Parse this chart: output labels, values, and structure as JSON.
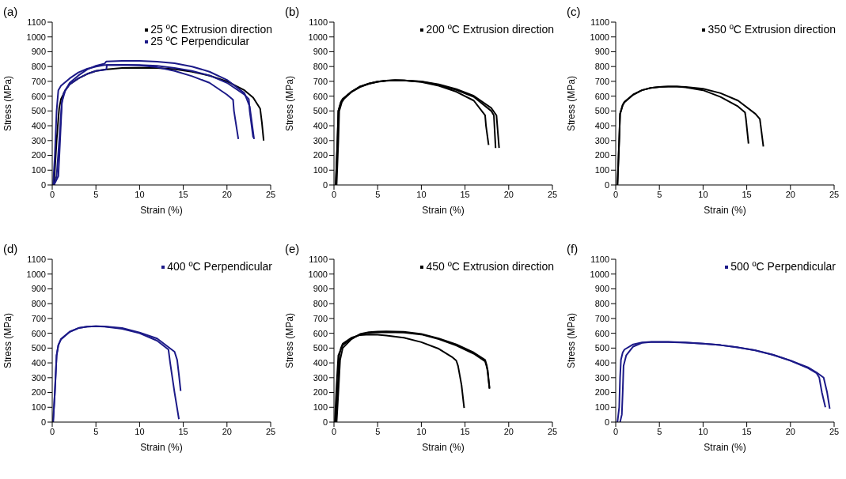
{
  "chart_data": [
    {
      "type": "line",
      "title": "(a)",
      "xlabel": "Strain (%)",
      "ylabel": "Stress (MPa)",
      "xlim": [
        0,
        25
      ],
      "xticks": [
        0,
        5,
        10,
        15,
        20,
        25
      ],
      "ylim": [
        0,
        1100
      ],
      "yticks": [
        0,
        100,
        200,
        300,
        400,
        500,
        600,
        700,
        800,
        900,
        1000,
        1100
      ],
      "legend": "top right",
      "marker": "none",
      "series": [
        {
          "name": "25 ºC Extrusion direction",
          "color": "#000000",
          "x": [
            0.2,
            0.5,
            0.8,
            1,
            1.5,
            2,
            3,
            4,
            5,
            6,
            8,
            10,
            12,
            14,
            16,
            18,
            20,
            22,
            23,
            23.8,
            24,
            24.2
          ],
          "values": [
            0,
            300,
            520,
            580,
            640,
            680,
            720,
            750,
            770,
            780,
            790,
            792,
            790,
            782,
            765,
            738,
            700,
            640,
            590,
            515,
            420,
            300
          ]
        },
        {
          "name": "25 ºC Perpendicular",
          "color": "#1c1a88",
          "x": [
            0.1,
            0.3,
            0.5,
            0.7,
            1,
            2,
            3,
            4,
            5,
            6,
            8,
            10,
            12,
            14,
            16,
            18,
            20,
            20.7,
            20.8,
            21.3
          ],
          "values": [
            0,
            200,
            500,
            640,
            670,
            720,
            760,
            785,
            800,
            810,
            812,
            808,
            795,
            770,
            735,
            690,
            610,
            575,
            500,
            310
          ]
        },
        {
          "color": "#1c1a88",
          "x": [
            0.2,
            0.7,
            0.9,
            1.1,
            1.3,
            2,
            3,
            4,
            5,
            6,
            6.2,
            8,
            10,
            12,
            14,
            16,
            18,
            20,
            22,
            22.6,
            23.1
          ],
          "values": [
            0,
            60,
            300,
            550,
            620,
            690,
            740,
            780,
            805,
            820,
            835,
            838,
            838,
            833,
            822,
            800,
            765,
            710,
            620,
            530,
            310
          ]
        },
        {
          "color": "#1c1a88",
          "x": [
            0.2,
            0.5,
            0.8,
            1.1,
            1.5,
            2,
            3,
            4,
            5,
            6.2,
            6.25,
            8,
            10,
            12,
            14,
            16,
            18,
            20,
            22,
            22.5,
            22.6,
            23
          ],
          "values": [
            0,
            60,
            300,
            560,
            640,
            680,
            720,
            750,
            770,
            780,
            810,
            812,
            810,
            805,
            790,
            770,
            740,
            690,
            610,
            580,
            500,
            320
          ]
        }
      ]
    },
    {
      "type": "line",
      "title": "(b)",
      "xlabel": "Strain (%)",
      "ylabel": "Stress (MPa)",
      "xlim": [
        0,
        25
      ],
      "xticks": [
        0,
        5,
        10,
        15,
        20,
        25
      ],
      "ylim": [
        0,
        1100
      ],
      "yticks": [
        0,
        100,
        200,
        300,
        400,
        500,
        600,
        700,
        800,
        900,
        1000,
        1100
      ],
      "legend": "top right",
      "marker": "none",
      "series": [
        {
          "name": "200 ºC Extrusion direction",
          "color": "#000000",
          "x": [
            0.2,
            0.4,
            0.5,
            0.8,
            1,
            2,
            3,
            4,
            5,
            6,
            7,
            8,
            10,
            12,
            14,
            16,
            17.3,
            17.4,
            17.7
          ],
          "values": [
            0,
            300,
            500,
            560,
            580,
            630,
            665,
            685,
            698,
            705,
            708,
            706,
            695,
            670,
            630,
            570,
            470,
            400,
            270
          ]
        },
        {
          "color": "#000000",
          "x": [
            0.2,
            0.4,
            0.5,
            0.8,
            1,
            2,
            3,
            4,
            5,
            6,
            7,
            8,
            10,
            12,
            14,
            16,
            18,
            18.3,
            18.5
          ],
          "values": [
            0,
            300,
            500,
            560,
            580,
            630,
            665,
            685,
            698,
            705,
            708,
            706,
            698,
            675,
            642,
            595,
            500,
            470,
            250
          ]
        },
        {
          "color": "#000000",
          "x": [
            0.3,
            0.5,
            0.6,
            0.9,
            1.2,
            2,
            3,
            4,
            5,
            6,
            7,
            8,
            10,
            12,
            14,
            16,
            18,
            18.6,
            18.9
          ],
          "values": [
            0,
            300,
            500,
            560,
            585,
            628,
            662,
            683,
            697,
            704,
            707,
            706,
            700,
            680,
            648,
            602,
            520,
            470,
            250
          ]
        }
      ]
    },
    {
      "type": "line",
      "title": "(c)",
      "xlabel": "Strain (%)",
      "ylabel": "Stress (MPa)",
      "xlim": [
        0,
        25
      ],
      "xticks": [
        0,
        5,
        10,
        15,
        20,
        25
      ],
      "ylim": [
        0,
        1100
      ],
      "yticks": [
        0,
        100,
        200,
        300,
        400,
        500,
        600,
        700,
        800,
        900,
        1000,
        1100
      ],
      "legend": "top right",
      "marker": "none",
      "series": [
        {
          "name": "350 ºC Extrusion direction",
          "color": "#000000",
          "x": [
            0.2,
            0.4,
            0.5,
            0.8,
            1,
            2,
            3,
            4,
            5,
            6,
            7,
            8,
            10,
            12,
            14,
            14.8,
            14.9,
            15.2
          ],
          "values": [
            0,
            300,
            480,
            540,
            560,
            610,
            640,
            655,
            662,
            665,
            665,
            660,
            640,
            595,
            530,
            490,
            450,
            280
          ]
        },
        {
          "color": "#000000",
          "x": [
            0.2,
            0.4,
            0.5,
            0.8,
            1,
            2,
            3,
            4,
            5,
            6,
            7,
            8,
            10,
            12,
            14,
            16,
            16.5,
            16.6,
            16.9
          ],
          "values": [
            0,
            300,
            480,
            540,
            560,
            610,
            640,
            655,
            662,
            665,
            665,
            662,
            650,
            620,
            570,
            480,
            445,
            400,
            260
          ]
        }
      ]
    },
    {
      "type": "line",
      "title": "(d)",
      "xlabel": "Strain (%)",
      "ylabel": "Stress (MPa)",
      "xlim": [
        0,
        25
      ],
      "xticks": [
        0,
        5,
        10,
        15,
        20,
        25
      ],
      "ylim": [
        0,
        1100
      ],
      "yticks": [
        0,
        100,
        200,
        300,
        400,
        500,
        600,
        700,
        800,
        900,
        1000,
        1100
      ],
      "legend": "top right",
      "marker": "none",
      "series": [
        {
          "name": "400 ºC Perpendicular",
          "color": "#1c1a88",
          "x": [
            0.1,
            0.3,
            0.5,
            0.7,
            1,
            2,
            3,
            4,
            5,
            6,
            8,
            10,
            12,
            13.3,
            13.5,
            14,
            14.5
          ],
          "values": [
            0,
            200,
            450,
            520,
            560,
            610,
            635,
            645,
            648,
            645,
            630,
            600,
            550,
            490,
            400,
            200,
            20
          ]
        },
        {
          "color": "#1c1a88",
          "x": [
            0.1,
            0.3,
            0.5,
            0.7,
            1,
            2,
            3,
            4,
            5,
            6,
            8,
            10,
            12,
            14,
            14.3,
            14.5,
            14.7
          ],
          "values": [
            0,
            200,
            450,
            520,
            560,
            610,
            635,
            645,
            648,
            646,
            635,
            605,
            565,
            475,
            420,
            320,
            210
          ]
        }
      ]
    },
    {
      "type": "line",
      "title": "(e)",
      "xlabel": "Strain (%)",
      "ylabel": "Stress (MPa)",
      "xlim": [
        0,
        25
      ],
      "xticks": [
        0,
        5,
        10,
        15,
        20,
        25
      ],
      "ylim": [
        0,
        1100
      ],
      "yticks": [
        0,
        100,
        200,
        300,
        400,
        500,
        600,
        700,
        800,
        900,
        1000,
        1100
      ],
      "legend": "top right",
      "marker": "none",
      "series": [
        {
          "name": "450 ºC Extrusion direction",
          "color": "#000000",
          "x": [
            0.2,
            0.4,
            0.6,
            0.8,
            1,
            2,
            3,
            4,
            5,
            6,
            8,
            10,
            12,
            13.5,
            14,
            14.2,
            14.6,
            14.9
          ],
          "values": [
            0,
            200,
            450,
            500,
            530,
            570,
            588,
            592,
            590,
            585,
            570,
            540,
            495,
            440,
            415,
            380,
            250,
            95
          ]
        },
        {
          "color": "#000000",
          "x": [
            0.3,
            0.5,
            0.7,
            1,
            2,
            3,
            4,
            5,
            6,
            8,
            10,
            12,
            14,
            16,
            17.3,
            17.5,
            17.8
          ],
          "values": [
            0,
            200,
            420,
            500,
            560,
            595,
            608,
            612,
            613,
            610,
            595,
            565,
            525,
            470,
            420,
            380,
            230
          ]
        },
        {
          "color": "#000000",
          "x": [
            0.1,
            0.3,
            0.5,
            1,
            2,
            3,
            4,
            6,
            8,
            10,
            12,
            14,
            16,
            17.3,
            17.6,
            17.8
          ],
          "values": [
            0,
            250,
            450,
            520,
            565,
            592,
            603,
            608,
            605,
            592,
            560,
            518,
            462,
            410,
            350,
            225
          ]
        }
      ]
    },
    {
      "type": "line",
      "title": "(f)",
      "xlabel": "Strain (%)",
      "ylabel": "Stress (MPa)",
      "xlim": [
        0,
        25
      ],
      "xticks": [
        0,
        5,
        10,
        15,
        20,
        25
      ],
      "ylim": [
        0,
        1100
      ],
      "yticks": [
        0,
        100,
        200,
        300,
        400,
        500,
        600,
        700,
        800,
        900,
        1000,
        1100
      ],
      "legend": "top right",
      "marker": "none",
      "series": [
        {
          "name": "500 ºC Perpendicular",
          "color": "#1c1a88",
          "x": [
            0.2,
            0.4,
            0.5,
            0.6,
            0.8,
            1,
            2,
            3,
            4,
            6,
            8,
            10,
            12,
            14,
            16,
            18,
            20,
            22,
            23,
            23.3,
            23.6,
            24
          ],
          "values": [
            0,
            100,
            300,
            420,
            470,
            490,
            525,
            538,
            542,
            542,
            538,
            530,
            520,
            505,
            485,
            455,
            415,
            365,
            330,
            300,
            200,
            100
          ]
        },
        {
          "color": "#1c1a88",
          "x": [
            0.5,
            0.7,
            0.8,
            0.9,
            1.2,
            2,
            3,
            4,
            6,
            8,
            10,
            12,
            14,
            16,
            18,
            20,
            22,
            23,
            23.8,
            24.2,
            24.5
          ],
          "values": [
            0,
            50,
            200,
            380,
            450,
            510,
            535,
            540,
            541,
            537,
            530,
            520,
            504,
            484,
            454,
            416,
            370,
            335,
            300,
            200,
            90
          ]
        }
      ]
    }
  ]
}
